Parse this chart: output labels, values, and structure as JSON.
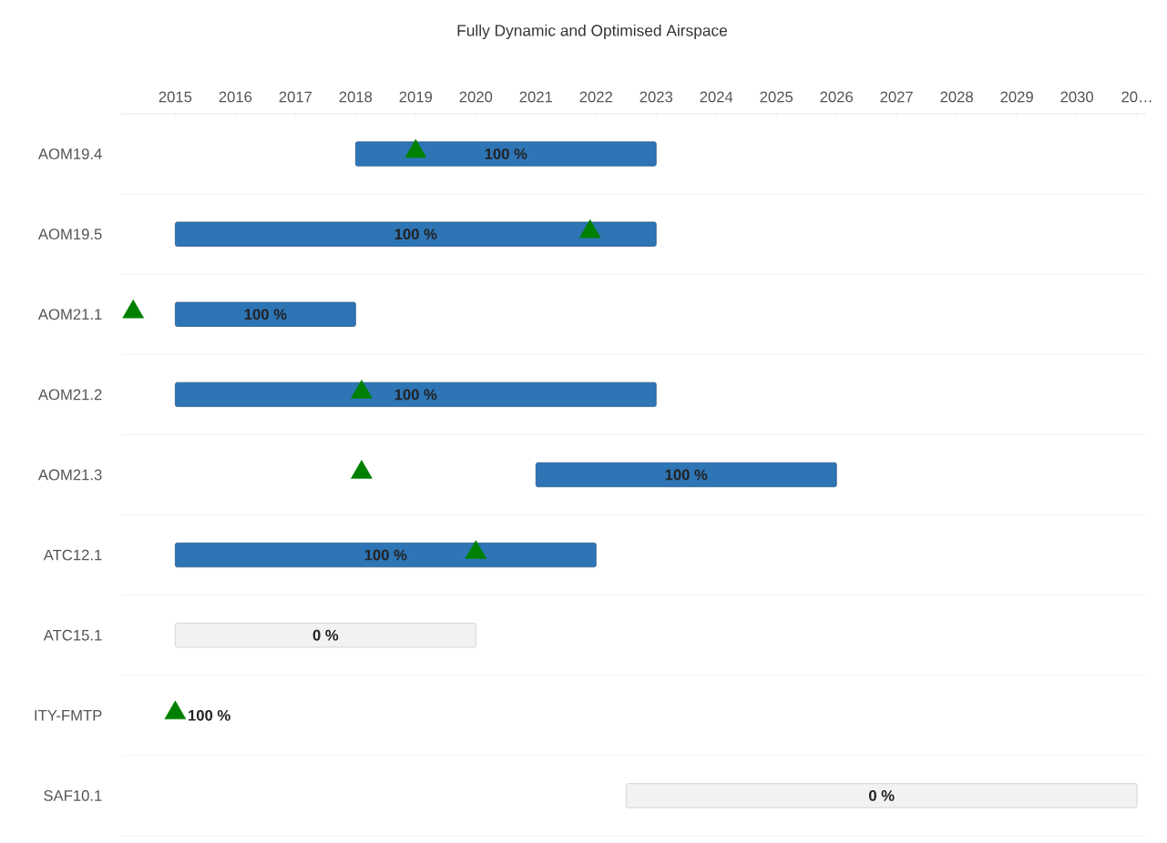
{
  "chart_data": {
    "type": "bar",
    "orientation": "horizontal",
    "title": "Fully Dynamic and Optimised Airspace",
    "categories": [
      "AOM19.4",
      "AOM19.5",
      "AOM21.1",
      "AOM21.2",
      "AOM21.3",
      "ATC12.1",
      "ATC15.1",
      "ITY-FMTP",
      "SAF10.1"
    ],
    "series": [
      {
        "base": [
          2018,
          2015,
          2015,
          2015,
          2021,
          2015,
          2015,
          null,
          2022.5
        ],
        "values": [
          5,
          8,
          3,
          8,
          5,
          7,
          5,
          null,
          8.5
        ],
        "colors": [
          "#2e75b6",
          "#2e75b6",
          "#2e75b6",
          "#2e75b6",
          "#2e75b6",
          "#2e75b6",
          "#f2f2f2",
          "#2e75b6",
          "#f2f2f2"
        ]
      },
      {
        "type": "scatter",
        "color": "#008000",
        "marker": "triangle",
        "values": [
          2019,
          2021.9,
          2014.3,
          2018.1,
          2018.1,
          2020,
          null,
          2015,
          null
        ]
      }
    ],
    "annotations": [
      "100 %",
      "100 %",
      "100 %",
      "100 %",
      "100 %",
      "100 %",
      "0 %",
      "100 %",
      "0 %"
    ],
    "xlim": [
      2014.1,
      2031.15
    ],
    "xticks": [
      2015,
      2016,
      2017,
      2018,
      2019,
      2020,
      2021,
      2022,
      2023,
      2024,
      2025,
      2026,
      2027,
      2028,
      2029,
      2030,
      {
        "value": 2031,
        "label": "20…"
      }
    ],
    "grid": "y"
  }
}
